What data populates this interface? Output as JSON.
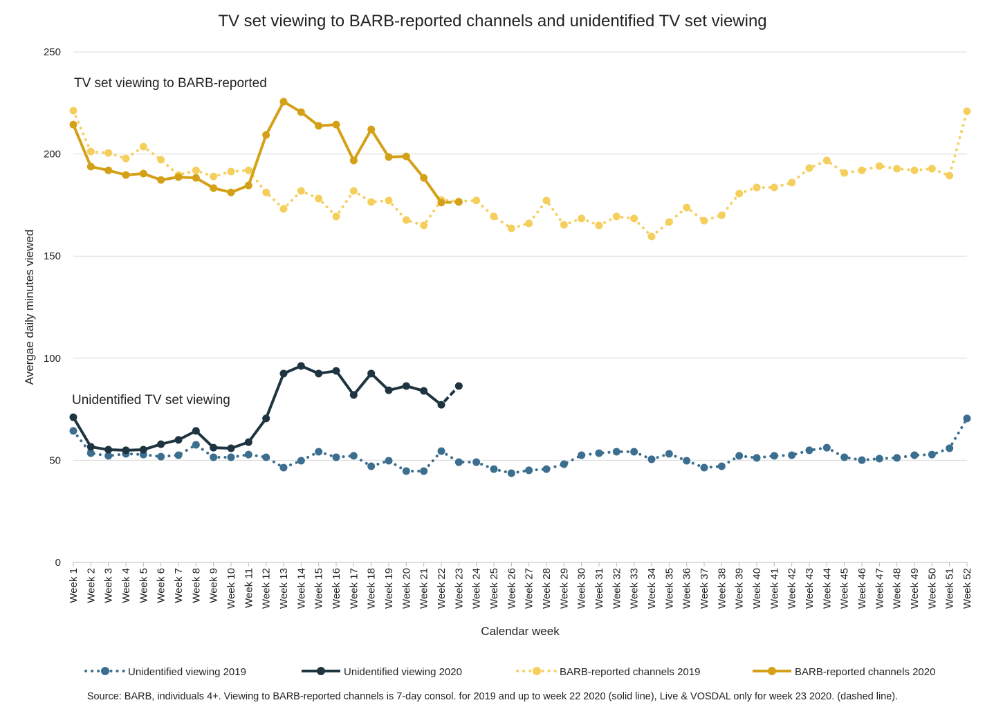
{
  "chart_data": {
    "type": "line",
    "title": "TV set viewing to BARB-reported channels and unidentified TV set viewing",
    "y_label": "Avergae daily minutes viewed",
    "x_label": "Calendar week",
    "source": "Source: BARB, individuals 4+. Viewing to BARB-reported channels is 7-day consol. for 2019 and up to week 22 2020 (solid line), Live & VOSDAL only for week 23 2020. (dashed line).",
    "annotations": [
      {
        "text": "TV set viewing to BARB-reported"
      },
      {
        "text": "Unidentified TV set viewing"
      }
    ],
    "categories": [
      "Week 1",
      "Week 2",
      "Week 3",
      "Week 4",
      "Week 5",
      "Week 6",
      "Week 7",
      "Week 8",
      "Week 9",
      "Week 10",
      "Week 11",
      "Week 12",
      "Week 13",
      "Week 14",
      "Week 15",
      "Week 16",
      "Week 17",
      "Week 18",
      "Week 19",
      "Week 20",
      "Week 21",
      "Week 22",
      "Week 23",
      "Week 24",
      "Week 25",
      "Week 26",
      "Week 27",
      "Week 28",
      "Week 29",
      "Week 30",
      "Week 31",
      "Week 32",
      "Week 33",
      "Week 34",
      "Week 35",
      "Week 36",
      "Week 37",
      "Week 38",
      "Week 39",
      "Week 40",
      "Week 41",
      "Week 42",
      "Week 43",
      "Week 44",
      "Week 45",
      "Week 46",
      "Week 47",
      "Week 48",
      "Week 49",
      "Week 50",
      "Week 51",
      "Week 52"
    ],
    "ylim": [
      0,
      250
    ],
    "yticks": [
      0,
      50,
      100,
      150,
      200,
      250
    ],
    "grid": true,
    "series": [
      {
        "name": "Unidentified viewing 2019",
        "color": "#3b6e8f",
        "style": "dotted",
        "values": [
          64.4,
          53.5,
          52.2,
          53.2,
          52.8,
          51.8,
          52.5,
          57.6,
          51.5,
          51.5,
          52.8,
          51.5,
          46.4,
          49.8,
          54.2,
          51.5,
          52.2,
          47.1,
          49.8,
          44.7,
          44.7,
          54.5,
          49.1,
          49.1,
          45.7,
          43.7,
          45.1,
          45.7,
          48.1,
          52.5,
          53.5,
          54.2,
          54.2,
          50.5,
          53.2,
          49.8,
          46.4,
          47.1,
          52.2,
          51.2,
          52.2,
          52.5,
          54.9,
          56.2,
          51.5,
          50.1,
          50.8,
          51.2,
          52.5,
          52.8,
          55.9,
          70.5
        ]
      },
      {
        "name": "Unidentified viewing 2020",
        "color": "#1f3441",
        "style": "solid",
        "values": [
          71.1,
          56.6,
          55.2,
          54.9,
          55.2,
          57.9,
          60,
          64.4,
          56.2,
          55.9,
          58.9,
          70.5,
          92.5,
          96.2,
          92.5,
          93.8,
          82,
          92.5,
          84.3,
          86.4,
          84,
          77.2,
          86.4,
          null,
          null,
          null,
          null,
          null,
          null,
          null,
          null,
          null,
          null,
          null,
          null,
          null,
          null,
          null,
          null,
          null,
          null,
          null,
          null,
          null,
          null,
          null,
          null,
          null,
          null,
          null,
          null,
          null
        ]
      },
      {
        "name": "BARB-reported channels 2019",
        "color": "#f5cf5e",
        "style": "dotted",
        "values": [
          221.2,
          201.2,
          200.5,
          197.8,
          203.6,
          197.2,
          189.7,
          192,
          189,
          191.4,
          192,
          181.2,
          173.1,
          181.9,
          178.2,
          169.4,
          181.9,
          176.5,
          177.2,
          167.7,
          165,
          177.5,
          176.8,
          177.2,
          169.4,
          163.6,
          166,
          177.2,
          165.3,
          168.4,
          165,
          169.4,
          168.4,
          159.6,
          166.7,
          173.8,
          167.3,
          170,
          180.6,
          183.6,
          183.6,
          186,
          193.1,
          196.8,
          190.7,
          192,
          194.1,
          192.8,
          192,
          192.8,
          189.4,
          220.9
        ]
      },
      {
        "name": "BARB-reported channels 2020",
        "color": "#d4a017",
        "style": "solid",
        "values": [
          214.4,
          193.8,
          192,
          189.7,
          190.4,
          187.3,
          188.7,
          188.3,
          183.3,
          181.2,
          184.6,
          209.3,
          225.6,
          220.5,
          213.8,
          214.4,
          196.8,
          212,
          198.5,
          198.8,
          188.3,
          176.2,
          176.5,
          null,
          null,
          null,
          null,
          null,
          null,
          null,
          null,
          null,
          null,
          null,
          null,
          null,
          null,
          null,
          null,
          null,
          null,
          null,
          null,
          null,
          null,
          null,
          null,
          null,
          null,
          null,
          null,
          null
        ]
      }
    ]
  }
}
